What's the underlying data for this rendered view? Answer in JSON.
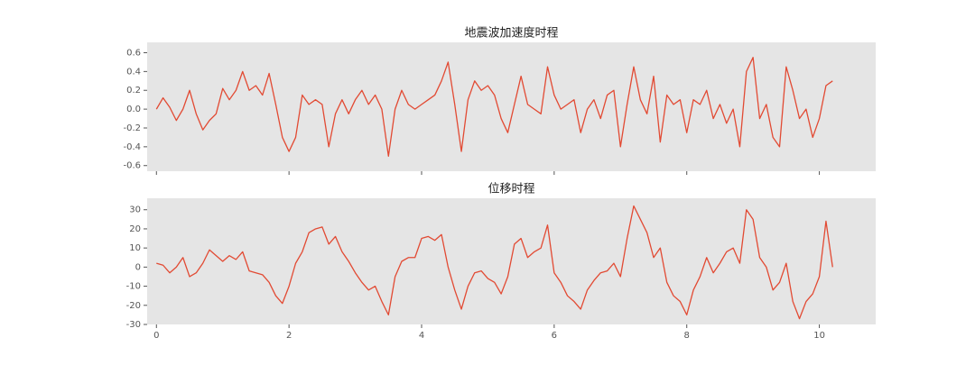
{
  "chart_data": [
    {
      "type": "line",
      "title": "地震波加速度时程",
      "x": [
        0,
        0.1,
        0.2,
        0.3,
        0.4,
        0.5,
        0.6,
        0.7,
        0.8,
        0.9,
        1,
        1.1,
        1.2,
        1.3,
        1.4,
        1.5,
        1.6,
        1.7,
        1.8,
        1.9,
        2,
        2.1,
        2.2,
        2.3,
        2.4,
        2.5,
        2.6,
        2.7,
        2.8,
        2.9,
        3,
        3.1,
        3.2,
        3.3,
        3.4,
        3.5,
        3.6,
        3.7,
        3.8,
        3.9,
        4,
        4.1,
        4.2,
        4.3,
        4.4,
        4.5,
        4.6,
        4.7,
        4.8,
        4.9,
        5,
        5.1,
        5.2,
        5.3,
        5.4,
        5.5,
        5.6,
        5.7,
        5.8,
        5.9,
        6,
        6.1,
        6.2,
        6.3,
        6.4,
        6.5,
        6.6,
        6.7,
        6.8,
        6.9,
        7,
        7.1,
        7.2,
        7.3,
        7.4,
        7.5,
        7.6,
        7.7,
        7.8,
        7.9,
        8,
        8.1,
        8.2,
        8.3,
        8.4,
        8.5,
        8.6,
        8.7,
        8.8,
        8.9,
        9,
        9.1,
        9.2,
        9.3,
        9.4,
        9.5,
        9.6,
        9.7,
        9.8,
        9.9,
        10,
        10.1,
        10.2
      ],
      "series": [
        {
          "color": "#e24a33",
          "values": [
            0,
            0.12,
            0.02,
            -0.12,
            0,
            0.2,
            -0.05,
            -0.22,
            -0.12,
            -0.05,
            0.22,
            0.1,
            0.2,
            0.4,
            0.2,
            0.25,
            0.15,
            0.38,
            0.05,
            -0.3,
            -0.45,
            -0.3,
            0.15,
            0.05,
            0.1,
            0.05,
            -0.4,
            -0.05,
            0.1,
            -0.05,
            0.1,
            0.2,
            0.05,
            0.15,
            0,
            -0.5,
            0,
            0.2,
            0.05,
            0,
            0.05,
            0.1,
            0.15,
            0.3,
            0.5,
            0.05,
            -0.45,
            0.1,
            0.3,
            0.2,
            0.25,
            0.15,
            -0.1,
            -0.25,
            0.05,
            0.35,
            0.05,
            0,
            -0.05,
            0.45,
            0.15,
            0,
            0.05,
            0.1,
            -0.25,
            0,
            0.1,
            -0.1,
            0.15,
            0.2,
            -0.4,
            0.05,
            0.45,
            0.1,
            -0.05,
            0.35,
            -0.35,
            0.15,
            0.05,
            0.1,
            -0.25,
            0.1,
            0.05,
            0.2,
            -0.1,
            0.05,
            -0.15,
            0,
            -0.4,
            0.4,
            0.55,
            -0.1,
            0.05,
            -0.3,
            -0.4,
            0.45,
            0.2,
            -0.1,
            0,
            -0.3,
            -0.1,
            0.25,
            0.3
          ]
        }
      ],
      "xlim": [
        -0.14,
        10.85
      ],
      "xticks": [
        0,
        2,
        4,
        6,
        8,
        10
      ],
      "ylim": [
        -0.66,
        0.71
      ],
      "yticks": [
        -0.6,
        -0.4,
        -0.2,
        {
          "value": 0,
          "label": "0.0"
        },
        0.2,
        0.4,
        0.6
      ],
      "grid": false
    },
    {
      "type": "line",
      "title": "位移时程",
      "x": [
        0,
        0.1,
        0.2,
        0.3,
        0.4,
        0.5,
        0.6,
        0.7,
        0.8,
        0.9,
        1,
        1.1,
        1.2,
        1.3,
        1.4,
        1.5,
        1.6,
        1.7,
        1.8,
        1.9,
        2,
        2.1,
        2.2,
        2.3,
        2.4,
        2.5,
        2.6,
        2.7,
        2.8,
        2.9,
        3,
        3.1,
        3.2,
        3.3,
        3.4,
        3.5,
        3.6,
        3.7,
        3.8,
        3.9,
        4,
        4.1,
        4.2,
        4.3,
        4.4,
        4.5,
        4.6,
        4.7,
        4.8,
        4.9,
        5,
        5.1,
        5.2,
        5.3,
        5.4,
        5.5,
        5.6,
        5.7,
        5.8,
        5.9,
        6,
        6.1,
        6.2,
        6.3,
        6.4,
        6.5,
        6.6,
        6.7,
        6.8,
        6.9,
        7,
        7.1,
        7.2,
        7.3,
        7.4,
        7.5,
        7.6,
        7.7,
        7.8,
        7.9,
        8,
        8.1,
        8.2,
        8.3,
        8.4,
        8.5,
        8.6,
        8.7,
        8.8,
        8.9,
        9,
        9.1,
        9.2,
        9.3,
        9.4,
        9.5,
        9.6,
        9.7,
        9.8,
        9.9,
        10,
        10.1,
        10.2
      ],
      "series": [
        {
          "color": "#e24a33",
          "values": [
            2,
            1,
            -3,
            0,
            5,
            -5,
            -3,
            2,
            9,
            6,
            3,
            6,
            4,
            8,
            -2,
            -3,
            -4,
            -8,
            -15,
            -19,
            -10,
            2,
            8,
            18,
            20,
            21,
            12,
            16,
            8,
            3,
            -3,
            -8,
            -12,
            -10,
            -18,
            -25,
            -5,
            3,
            5,
            5,
            15,
            16,
            14,
            17,
            0,
            -12,
            -22,
            -10,
            -3,
            -2,
            -6,
            -8,
            -14,
            -5,
            12,
            15,
            5,
            8,
            10,
            22,
            -3,
            -8,
            -15,
            -18,
            -22,
            -12,
            -7,
            -3,
            -2,
            2,
            -5,
            15,
            32,
            25,
            18,
            5,
            10,
            -8,
            -15,
            -18,
            -25,
            -12,
            -5,
            5,
            -3,
            2,
            8,
            10,
            2,
            30,
            25,
            5,
            0,
            -12,
            -8,
            2,
            -18,
            -27,
            -18,
            -14,
            -5,
            24,
            0
          ]
        }
      ],
      "xlim": [
        -0.14,
        10.85
      ],
      "xticks": [
        0,
        2,
        4,
        6,
        8,
        10
      ],
      "ylim": [
        -30,
        36
      ],
      "yticks": [
        -30,
        -20,
        -10,
        0,
        10,
        20,
        30
      ],
      "grid": false
    }
  ]
}
